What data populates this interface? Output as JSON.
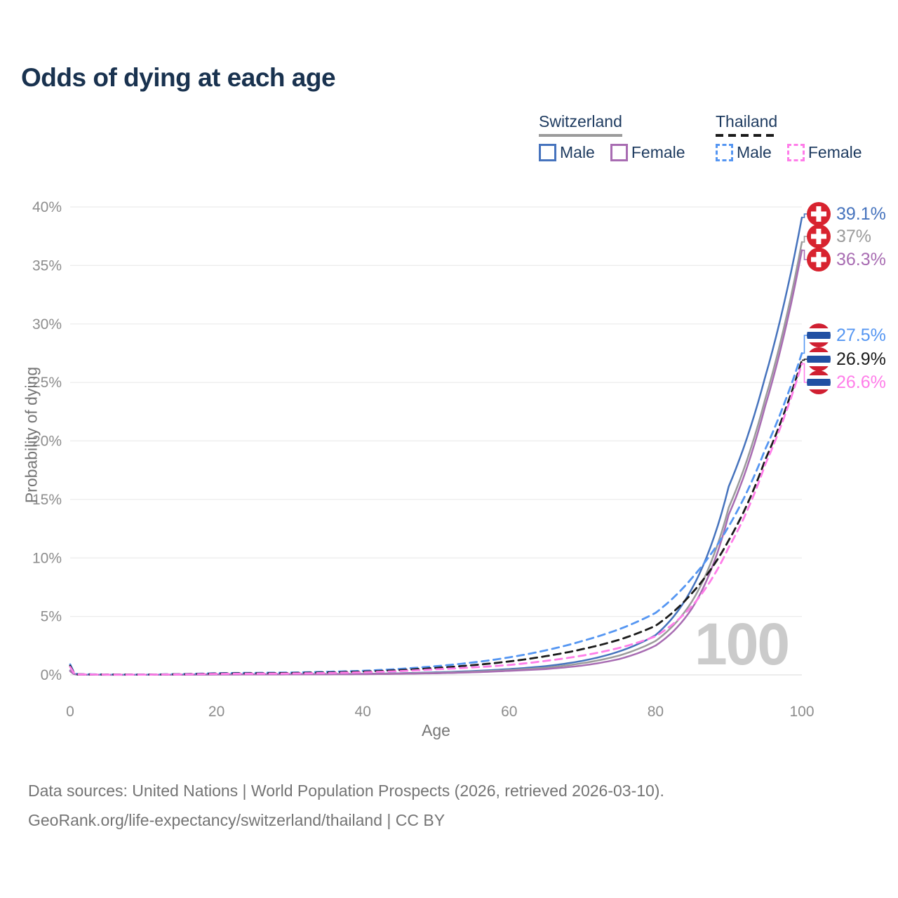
{
  "title": "Odds of dying at each age",
  "colors": {
    "title_navy": "#19324f",
    "legend_text": "#1d3a5f",
    "axis_gray": "#767676",
    "tick_gray": "#8d8d8d",
    "grid_gray": "#ececec",
    "baseline_gray": "#e0e0e0",
    "footer_gray": "#747474",
    "watermark_gray": "#cbcbcb",
    "swiss_flag_red": "#d8232f",
    "thai_flag_red": "#d01f31",
    "thai_flag_blue": "#2150a3"
  },
  "legend": {
    "groups": [
      {
        "name": "Switzerland",
        "underline_style": "solid",
        "underline_color": "#9b9b9b",
        "items": [
          {
            "label": "Male",
            "color": "#4673bd",
            "dashed": false
          },
          {
            "label": "Female",
            "color": "#a86cb2",
            "dashed": false
          }
        ]
      },
      {
        "name": "Thailand",
        "underline_style": "dashed",
        "underline_color": "#1b1b1b",
        "items": [
          {
            "label": "Male",
            "color": "#5596f2",
            "dashed": true
          },
          {
            "label": "Female",
            "color": "#ff7de9",
            "dashed": true
          }
        ]
      }
    ]
  },
  "chart_data": {
    "type": "line",
    "title": "Odds of dying at each age",
    "xlabel": "Age",
    "ylabel": "Probability of dying",
    "xlim": [
      0,
      100
    ],
    "ylim": [
      0,
      40
    ],
    "grid": "horizontal",
    "x_ticks": [
      "0",
      "20",
      "40",
      "60",
      "80",
      "100"
    ],
    "y_ticks": [
      "0%",
      "5%",
      "10%",
      "15%",
      "20%",
      "25%",
      "30%",
      "35%",
      "40%"
    ],
    "watermark": "100",
    "ages": [
      0,
      1,
      5,
      10,
      20,
      30,
      40,
      50,
      60,
      65,
      70,
      75,
      80,
      85,
      90,
      95,
      100
    ],
    "series": [
      {
        "id": "switzerland-male",
        "name": "Switzerland Male",
        "color": "#4673bd",
        "dashed": false,
        "end_label": "39.1%",
        "flag": "switzerland",
        "values": [
          0.38,
          0.025,
          0.01,
          0.012,
          0.05,
          0.06,
          0.09,
          0.22,
          0.5,
          0.75,
          1.2,
          2.0,
          3.4,
          7.4,
          16.1,
          25.5,
          39.1
        ]
      },
      {
        "id": "switzerland",
        "name": "Switzerland",
        "color": "#9b9b9b",
        "dashed": false,
        "end_label": "37%",
        "flag": "switzerland",
        "values": [
          0.35,
          0.02,
          0.009,
          0.011,
          0.04,
          0.05,
          0.08,
          0.18,
          0.42,
          0.62,
          1.0,
          1.65,
          2.9,
          6.3,
          14.3,
          23.6,
          37.0
        ]
      },
      {
        "id": "switzerland-female",
        "name": "Switzerland Female",
        "color": "#a86cb2",
        "dashed": false,
        "end_label": "36.3%",
        "flag": "switzerland",
        "values": [
          0.32,
          0.018,
          0.008,
          0.01,
          0.03,
          0.04,
          0.06,
          0.14,
          0.35,
          0.5,
          0.8,
          1.35,
          2.5,
          5.7,
          13.7,
          23.0,
          36.3
        ]
      },
      {
        "id": "thailand-male",
        "name": "Thailand Male",
        "color": "#5596f2",
        "dashed": true,
        "end_label": "27.5%",
        "flag": "thailand",
        "values": [
          0.9,
          0.06,
          0.035,
          0.03,
          0.15,
          0.2,
          0.35,
          0.75,
          1.5,
          2.1,
          2.9,
          3.9,
          5.3,
          8.3,
          12.7,
          19.3,
          27.5
        ]
      },
      {
        "id": "thailand",
        "name": "Thailand",
        "color": "#1b1b1b",
        "dashed": true,
        "end_label": "26.9%",
        "flag": "thailand",
        "values": [
          0.78,
          0.05,
          0.03,
          0.026,
          0.12,
          0.16,
          0.28,
          0.6,
          1.15,
          1.6,
          2.2,
          3.0,
          4.2,
          7.0,
          11.5,
          18.4,
          26.9
        ]
      },
      {
        "id": "thailand-female",
        "name": "Thailand Female",
        "color": "#ff7de9",
        "dashed": true,
        "end_label": "26.6%",
        "flag": "thailand",
        "values": [
          0.68,
          0.045,
          0.026,
          0.022,
          0.09,
          0.12,
          0.22,
          0.48,
          0.85,
          1.2,
          1.65,
          2.3,
          3.3,
          5.9,
          10.9,
          18.0,
          26.6
        ]
      }
    ]
  },
  "footer": {
    "line1": "Data sources: United Nations | World Population Prospects (2026, retrieved 2026-03-10).",
    "line2": "GeoRank.org/life-expectancy/switzerland/thailand | CC BY"
  }
}
